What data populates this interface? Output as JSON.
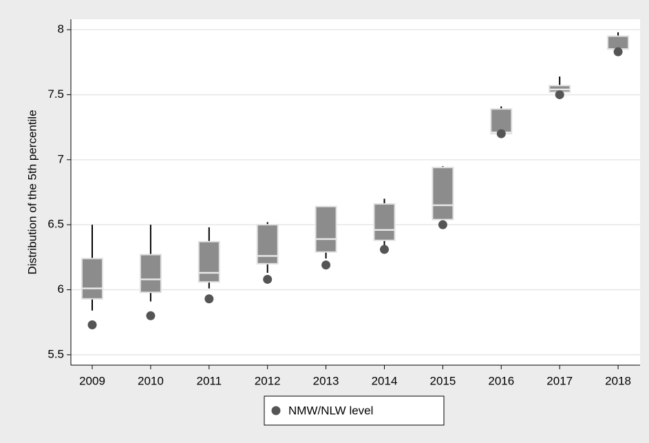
{
  "chart_data": {
    "type": "box",
    "y_label": "Distribution of the 5th percentile",
    "categories": [
      "2009",
      "2010",
      "2011",
      "2012",
      "2013",
      "2014",
      "2015",
      "2016",
      "2017",
      "2018"
    ],
    "boxes": {
      "whisker_low": [
        5.84,
        5.91,
        6.01,
        6.13,
        6.24,
        6.34,
        6.54,
        7.2,
        7.52,
        7.85
      ],
      "q1": [
        5.93,
        5.98,
        6.06,
        6.2,
        6.29,
        6.38,
        6.54,
        7.2,
        7.52,
        7.85
      ],
      "median": [
        6.01,
        6.08,
        6.13,
        6.26,
        6.39,
        6.46,
        6.65,
        7.21,
        7.54,
        7.85
      ],
      "q3": [
        6.24,
        6.27,
        6.37,
        6.5,
        6.64,
        6.66,
        6.94,
        7.39,
        7.57,
        7.95
      ],
      "whisker_high": [
        6.5,
        6.5,
        6.48,
        6.52,
        6.64,
        6.7,
        6.95,
        7.41,
        7.64,
        7.98
      ],
      "color": "#8c8c8c"
    },
    "series": [
      {
        "name": "NMW/NLW level",
        "color": "#555555",
        "values": [
          5.73,
          5.8,
          5.93,
          6.08,
          6.19,
          6.31,
          6.5,
          7.2,
          7.5,
          7.83
        ]
      }
    ],
    "ylim": [
      5.42,
      8.08
    ],
    "yticks": [
      5.5,
      6,
      6.5,
      7,
      7.5,
      8
    ],
    "grid": true
  }
}
